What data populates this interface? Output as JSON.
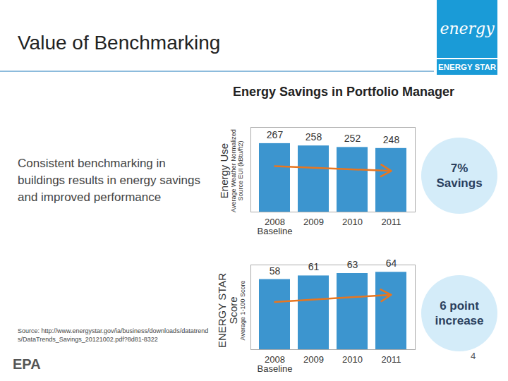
{
  "slide": {
    "title": "Value of Benchmarking",
    "text": "Consistent benchmarking in buildings results in energy savings and improved performance",
    "heading": "Energy Savings in Portfolio Manager",
    "source": "Source: http://www.energystar.gov/ia/business/downloads/datatrends/DataTrends_Savings_20121002.pdf?8d81-8322",
    "logo": "energy",
    "logo_band": "ENERGY STAR",
    "footer_logo": "EPA",
    "page": "4"
  },
  "chart_data": [
    {
      "type": "bar",
      "ylabel": "Energy Use",
      "ylabel_note": "Average Weather Normalized Source EUI (kBtu/ft2)",
      "categories": [
        "2008\nBaseline",
        "2009",
        "2010",
        "2011"
      ],
      "values": [
        267,
        258,
        252,
        248
      ],
      "color": "#3c95cf",
      "ylim": [
        0,
        330
      ],
      "yticks": [],
      "tick_labels": "x",
      "data_labels": true,
      "annotation": "7% Savings"
    },
    {
      "type": "bar",
      "ylabel": "ENERGY STAR Score",
      "ylabel_note": "Average 1-100 Score",
      "categories": [
        "2008\nBaseline",
        "2009",
        "2010",
        "2011"
      ],
      "values": [
        58,
        61,
        63,
        64
      ],
      "color": "#3c95cf",
      "ylim": [
        0,
        70
      ],
      "yticks": [],
      "tick_labels": "x",
      "data_labels": true,
      "annotation": "6 point increase"
    }
  ]
}
